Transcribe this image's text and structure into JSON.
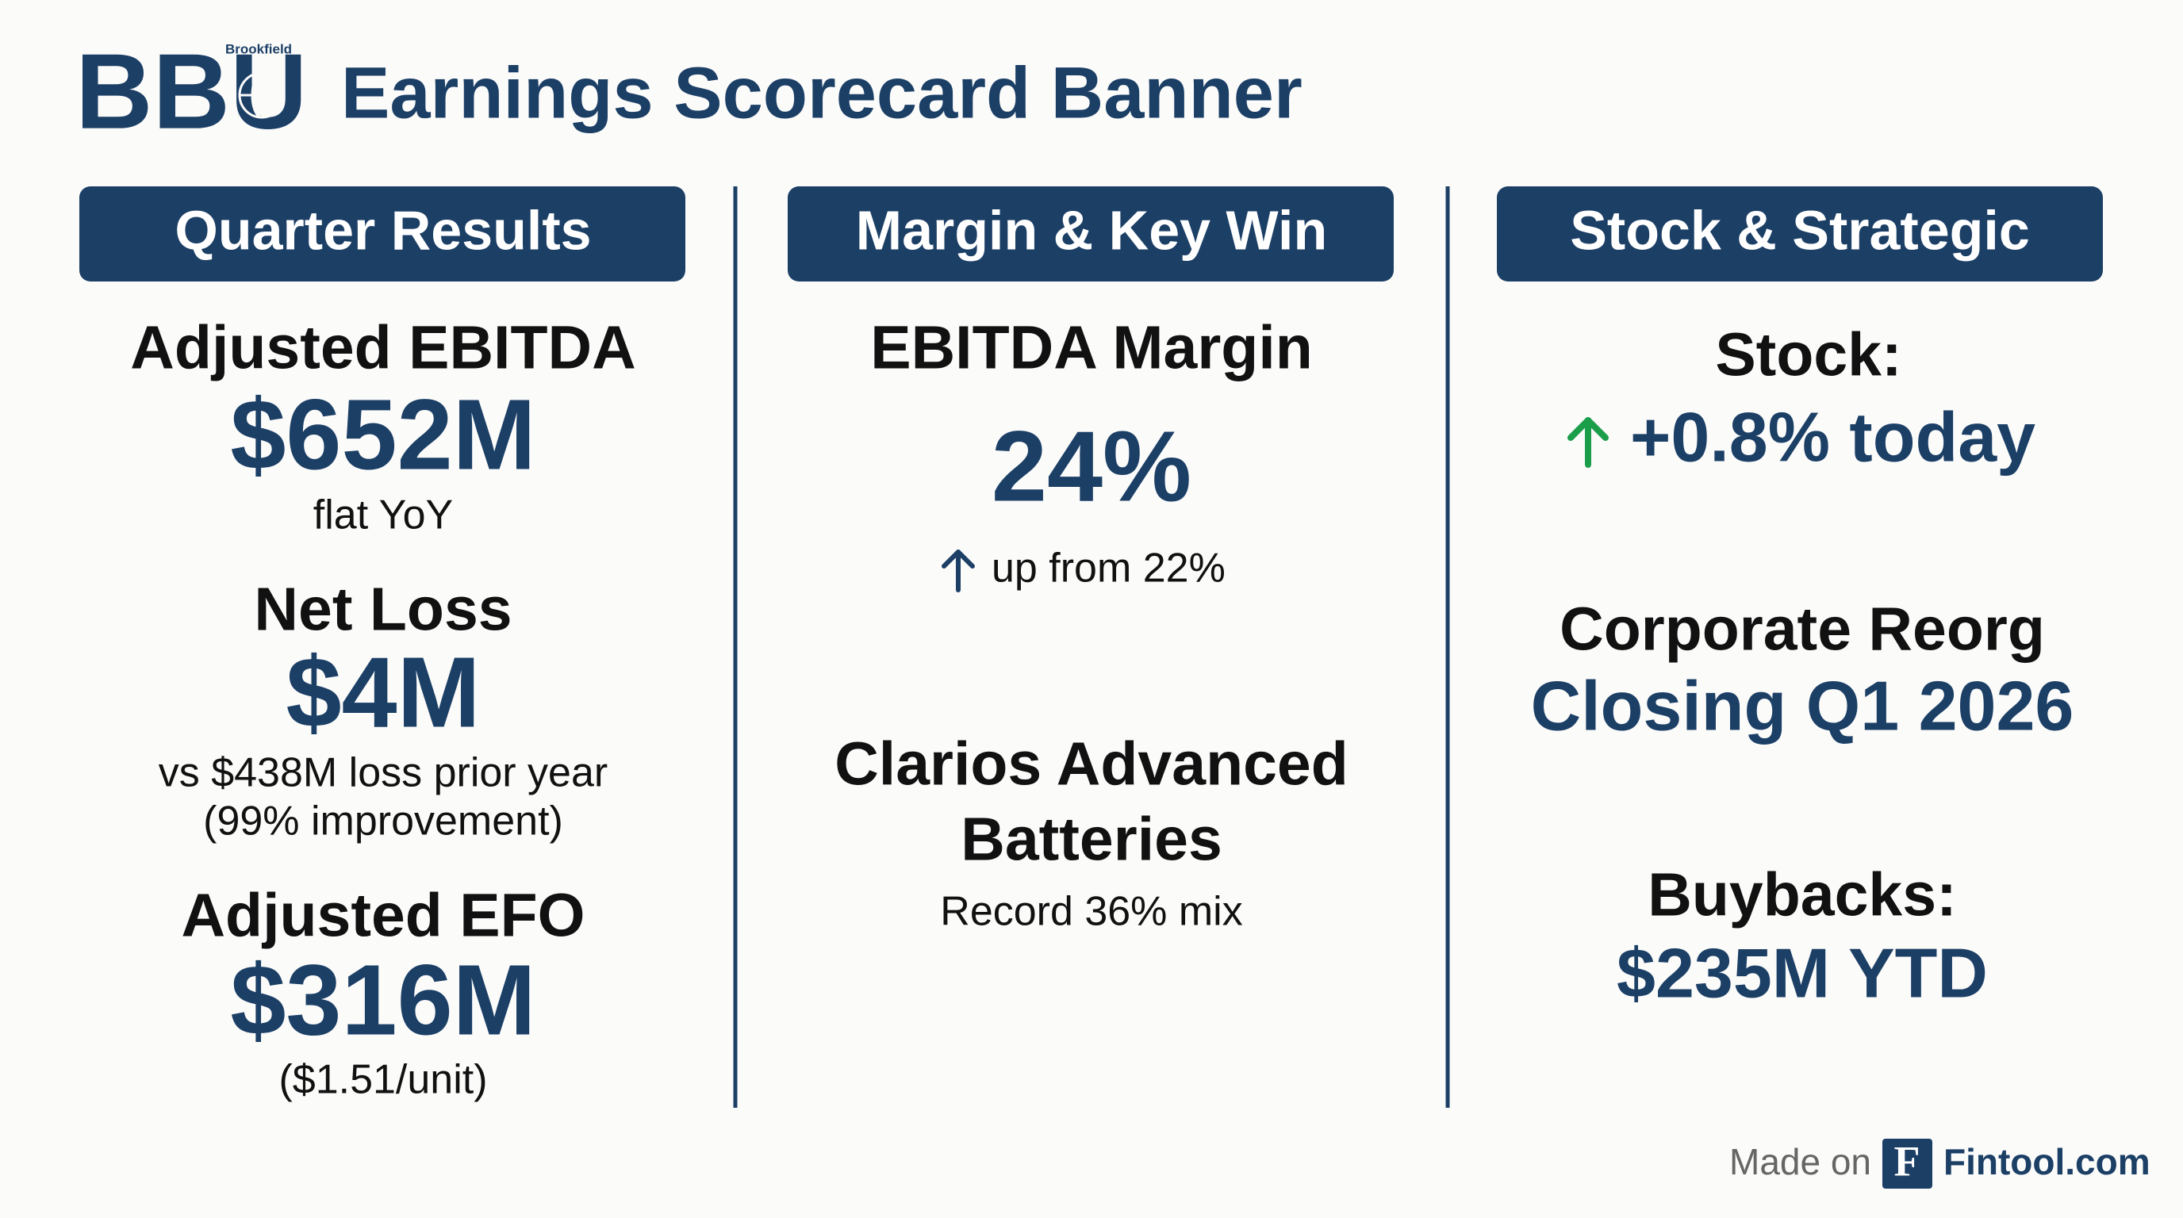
{
  "header": {
    "logo": "BBU",
    "brand": "Brookfield",
    "title": "Earnings Scorecard Banner"
  },
  "columns": [
    {
      "heading": "Quarter Results",
      "items": [
        {
          "label": "Adjusted EBITDA",
          "value": "$652M",
          "notes": [
            "flat YoY"
          ]
        },
        {
          "label": "Net Loss",
          "value": "$4M",
          "notes": [
            "vs $438M loss prior year",
            "(99% improvement)"
          ]
        },
        {
          "label": "Adjusted EFO",
          "value": "$316M",
          "notes": [
            "($1.51/unit)"
          ]
        }
      ]
    },
    {
      "heading": "Margin & Key Win",
      "items": [
        {
          "label": "EBITDA Margin",
          "value": "24%",
          "notes": [
            "up from 22%"
          ]
        },
        {
          "label": [
            "Clarios Advanced",
            "Batteries"
          ],
          "notes": [
            "Record 36% mix"
          ]
        }
      ]
    },
    {
      "heading": "Stock & Strategic",
      "items": [
        {
          "label": "Stock:",
          "value": "+0.8% today"
        },
        {
          "label": "Corporate Reorg",
          "value": "Closing Q1 2026"
        },
        {
          "label": "Buybacks:",
          "value": "$235M YTD"
        }
      ]
    }
  ],
  "footer": {
    "made_on": "Made on",
    "icon": "F",
    "brand": "Fintool.com"
  }
}
